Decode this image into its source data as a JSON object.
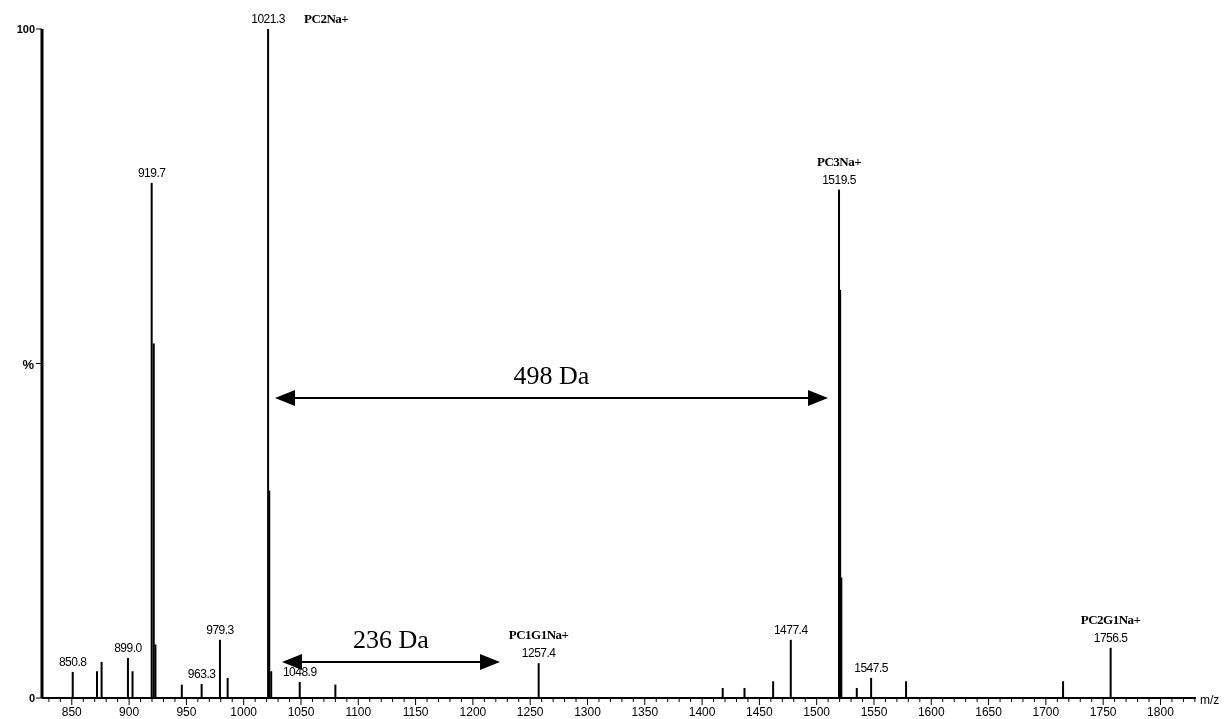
{
  "chart_data": {
    "type": "bar",
    "xlabel": "m/z",
    "ylabel": "%",
    "x": [
      850.8,
      872,
      876,
      899.0,
      903,
      919.7,
      921.5,
      923,
      946,
      963.3,
      979.3,
      986,
      1021.3,
      1022.3,
      1024,
      1048.9,
      1080,
      1257.4,
      1418,
      1437,
      1462,
      1477.4,
      1519.5,
      1520.5,
      1521.5,
      1535,
      1547.5,
      1578,
      1715,
      1756.5
    ],
    "values": [
      3.9,
      4.0,
      5.4,
      6.0,
      4.0,
      77,
      53,
      8,
      2,
      2.1,
      8.7,
      3.0,
      100,
      31,
      4,
      2.4,
      2,
      5.2,
      1.5,
      1.5,
      2.5,
      8.7,
      76,
      61,
      18,
      1.5,
      3.0,
      2.5,
      2.5,
      7.5
    ],
    "color": "#000000",
    "xlim": [
      824,
      1831
    ],
    "xticks": [
      850,
      900,
      950,
      1000,
      1050,
      1100,
      1150,
      1200,
      1250,
      1300,
      1350,
      1400,
      1450,
      1500,
      1550,
      1600,
      1650,
      1700,
      1750,
      1800
    ],
    "ylim": [
      0,
      100
    ],
    "yticks": [
      0,
      {
        "value": 50,
        "label": null
      },
      100
    ],
    "annotations": [
      {
        "text": "850.8",
        "x": 850.8,
        "y": 3.9
      },
      {
        "text": "899.0",
        "x": 899.0,
        "y": 6.0
      },
      {
        "text": "919.7",
        "x": 919.7,
        "y": 77
      },
      {
        "text": "963.3",
        "x": 963.3,
        "y": 2.1
      },
      {
        "text": "979.3",
        "x": 979.3,
        "y": 8.7
      },
      {
        "text": "1021.3",
        "x": 1021.3,
        "y": 100
      },
      {
        "text": "PC2Na+",
        "x": 1021.3,
        "y": 100
      },
      {
        "text": "1048.9",
        "x": 1048.9,
        "y": 2.4
      },
      {
        "text": "1257.4",
        "x": 1257.4,
        "y": 5.2
      },
      {
        "text": "PC1G1Na+",
        "x": 1257.4,
        "y": 5.2
      },
      {
        "text": "1477.4",
        "x": 1477.4,
        "y": 8.7
      },
      {
        "text": "1519.5",
        "x": 1519.5,
        "y": 76
      },
      {
        "text": "PC3Na+",
        "x": 1519.5,
        "y": 76
      },
      {
        "text": "1547.5",
        "x": 1547.5,
        "y": 3.0
      },
      {
        "text": "1756.5",
        "x": 1756.5,
        "y": 7.5
      },
      {
        "text": "PC2G1Na+",
        "x": 1756.5,
        "y": 7.5
      },
      "498 Da",
      "236 Da"
    ]
  }
}
